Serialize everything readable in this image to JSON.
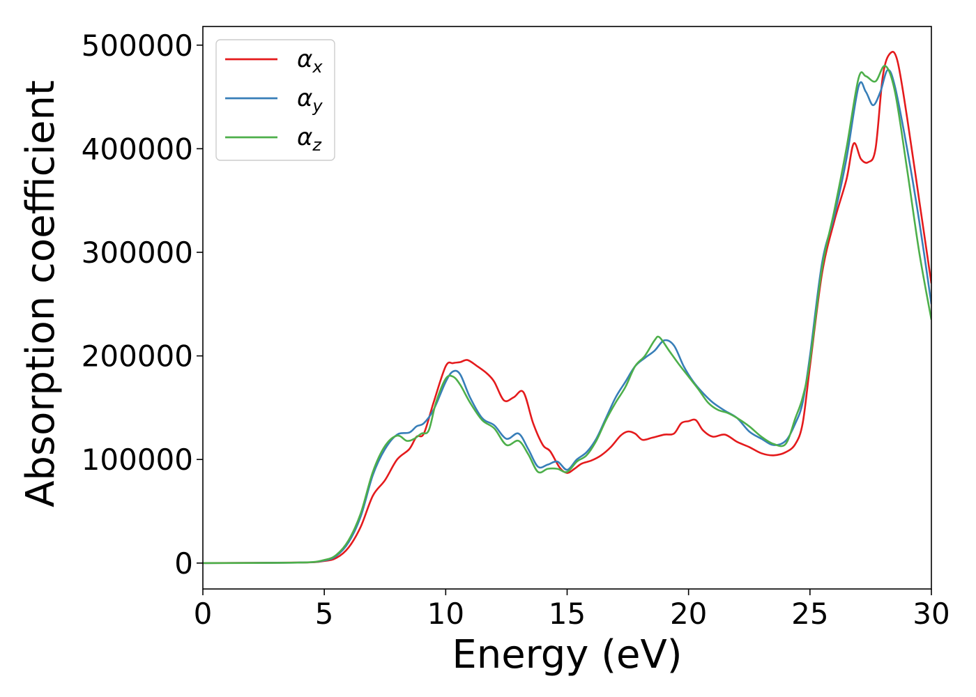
{
  "chart_data": {
    "type": "line",
    "xlabel": "Energy (eV)",
    "ylabel": "Absorption coefficient",
    "xlim": [
      0,
      30
    ],
    "ylim": [
      -25000,
      518000
    ],
    "xticks": [
      0,
      5,
      10,
      15,
      20,
      25,
      30
    ],
    "yticks": [
      0,
      100000,
      200000,
      300000,
      400000,
      500000
    ],
    "grid": false,
    "legend_position": "top-left",
    "series": [
      {
        "name": "αx",
        "label_base": "α",
        "label_sub": "x",
        "color": "#e41a1c",
        "x": [
          0,
          4,
          5,
          5.5,
          6,
          6.5,
          7,
          7.5,
          8,
          8.5,
          8.8,
          9.1,
          9.5,
          10,
          10.3,
          10.6,
          10.9,
          11.3,
          11.7,
          12,
          12.4,
          12.8,
          13.2,
          13.6,
          14,
          14.3,
          14.7,
          15,
          15.3,
          15.6,
          16,
          16.4,
          16.8,
          17.2,
          17.5,
          17.8,
          18.1,
          18.5,
          19,
          19.4,
          19.7,
          20,
          20.3,
          20.6,
          21,
          21.5,
          22,
          22.5,
          23,
          23.5,
          24,
          24.4,
          24.7,
          25,
          25.5,
          26,
          26.5,
          26.8,
          27.1,
          27.4,
          27.7,
          28,
          28.3,
          28.6,
          29,
          29.5,
          30
        ],
        "values": [
          0,
          500,
          2000,
          5000,
          15000,
          35000,
          65000,
          80000,
          100000,
          110000,
          122000,
          125000,
          155000,
          190000,
          193000,
          194000,
          196000,
          190000,
          183000,
          175000,
          157000,
          160000,
          165000,
          135000,
          114000,
          108000,
          92000,
          87000,
          91000,
          96000,
          99000,
          104000,
          112000,
          123000,
          127000,
          125000,
          119000,
          121000,
          124000,
          125000,
          135000,
          137000,
          138000,
          128000,
          122000,
          124000,
          117000,
          112000,
          106000,
          104000,
          107000,
          115000,
          135000,
          190000,
          280000,
          330000,
          370000,
          405000,
          390000,
          387000,
          400000,
          470000,
          492000,
          485000,
          430000,
          350000,
          270000
        ]
      },
      {
        "name": "αy",
        "label_base": "α",
        "label_sub": "y",
        "color": "#377eb8",
        "x": [
          0,
          4,
          5,
          5.5,
          6,
          6.5,
          7,
          7.5,
          8,
          8.5,
          8.8,
          9.1,
          9.5,
          10,
          10.3,
          10.6,
          11,
          11.5,
          12,
          12.5,
          13,
          13.4,
          13.8,
          14.2,
          14.6,
          15,
          15.4,
          15.8,
          16.2,
          16.6,
          17,
          17.4,
          17.8,
          18.2,
          18.6,
          19,
          19.4,
          19.8,
          20.2,
          20.6,
          21,
          21.5,
          22,
          22.5,
          23,
          23.5,
          24,
          24.4,
          24.7,
          25,
          25.5,
          26,
          26.5,
          27,
          27.3,
          27.6,
          27.9,
          28.2,
          28.5,
          29,
          29.5,
          30
        ],
        "values": [
          0,
          500,
          2500,
          7000,
          20000,
          45000,
          85000,
          110000,
          124000,
          126000,
          132000,
          135000,
          148000,
          175000,
          185000,
          182000,
          160000,
          140000,
          133000,
          120000,
          125000,
          110000,
          93000,
          95000,
          98000,
          90000,
          100000,
          107000,
          120000,
          140000,
          160000,
          175000,
          190000,
          198000,
          205000,
          215000,
          210000,
          190000,
          175000,
          164000,
          155000,
          147000,
          140000,
          127000,
          120000,
          114000,
          118000,
          135000,
          155000,
          200000,
          290000,
          335000,
          390000,
          460000,
          455000,
          442000,
          455000,
          476000,
          460000,
          400000,
          330000,
          250000
        ]
      },
      {
        "name": "αz",
        "label_base": "α",
        "label_sub": "z",
        "color": "#4daf4a",
        "x": [
          0,
          4,
          5,
          5.5,
          6,
          6.5,
          7,
          7.5,
          8,
          8.4,
          8.7,
          9,
          9.3,
          9.6,
          10,
          10.3,
          10.6,
          11,
          11.5,
          12,
          12.5,
          13,
          13.4,
          13.8,
          14.2,
          14.6,
          15,
          15.4,
          15.8,
          16.2,
          16.6,
          17,
          17.4,
          17.8,
          18.2,
          18.6,
          18.8,
          19.2,
          19.6,
          20,
          20.4,
          20.8,
          21.2,
          21.6,
          22,
          22.5,
          23,
          23.5,
          24,
          24.4,
          24.7,
          25,
          25.5,
          26,
          26.5,
          27,
          27.3,
          27.7,
          28.1,
          28.5,
          29,
          29.5,
          30
        ],
        "values": [
          0,
          500,
          3000,
          8000,
          22000,
          48000,
          88000,
          113000,
          123000,
          118000,
          120000,
          125000,
          128000,
          155000,
          178000,
          180000,
          172000,
          155000,
          138000,
          130000,
          114000,
          118000,
          105000,
          88000,
          91000,
          91000,
          88000,
          98000,
          104000,
          118000,
          138000,
          155000,
          170000,
          190000,
          200000,
          215000,
          218000,
          205000,
          192000,
          180000,
          168000,
          155000,
          148000,
          145000,
          140000,
          132000,
          122000,
          115000,
          115000,
          140000,
          160000,
          195000,
          285000,
          340000,
          400000,
          468000,
          470000,
          465000,
          480000,
          455000,
          380000,
          300000,
          235000
        ]
      }
    ]
  }
}
